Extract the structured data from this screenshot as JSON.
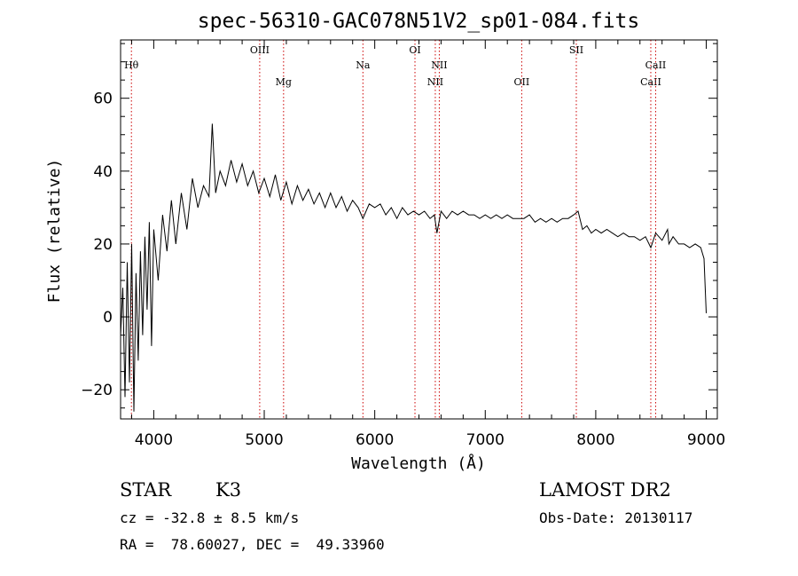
{
  "chart_data": {
    "type": "line",
    "title": "spec-56310-GAC078N51V2_sp01-084.fits",
    "xlabel": "Wavelength (Å)",
    "ylabel": "Flux (relative)",
    "xlim": [
      3700,
      9100
    ],
    "ylim": [
      -28,
      76
    ],
    "x_ticks": [
      4000,
      5000,
      6000,
      7000,
      8000,
      9000
    ],
    "y_ticks": [
      -20,
      0,
      20,
      40,
      60
    ],
    "grid": false,
    "line_color": "#000000",
    "marker_color": "#cc0000",
    "spectral_lines": [
      {
        "label": "Hθ",
        "wavelength": 3798,
        "row": 1
      },
      {
        "label": "OIII",
        "wavelength": 4959,
        "row": 0
      },
      {
        "label": "Mg",
        "wavelength": 5175,
        "row": 2
      },
      {
        "label": "Na",
        "wavelength": 5893,
        "row": 1
      },
      {
        "label": "OI",
        "wavelength": 6364,
        "row": 0
      },
      {
        "label": "NII",
        "wavelength": 6548,
        "row": 2
      },
      {
        "label": "NII",
        "wavelength": 6584,
        "row": 1
      },
      {
        "label": "OII",
        "wavelength": 7330,
        "row": 2
      },
      {
        "label": "SII",
        "wavelength": 7824,
        "row": 0
      },
      {
        "label": "CaII",
        "wavelength": 8498,
        "row": 2
      },
      {
        "label": "CaII",
        "wavelength": 8542,
        "row": 1
      }
    ],
    "series": [
      {
        "x": [
          3700,
          3720,
          3740,
          3760,
          3780,
          3800,
          3820,
          3840,
          3860,
          3880,
          3900,
          3920,
          3940,
          3960,
          3980,
          4000,
          4040,
          4080,
          4120,
          4160,
          4200,
          4250,
          4300,
          4350,
          4400,
          4450,
          4500,
          4530,
          4560,
          4600,
          4650,
          4700,
          4750,
          4800,
          4850,
          4900,
          4950,
          5000,
          5050,
          5100,
          5150,
          5200,
          5250,
          5300,
          5350,
          5400,
          5450,
          5500,
          5550,
          5600,
          5650,
          5700,
          5750,
          5800,
          5850,
          5893,
          5950,
          6000,
          6050,
          6100,
          6150,
          6200,
          6250,
          6300,
          6350,
          6400,
          6450,
          6500,
          6540,
          6563,
          6600,
          6650,
          6700,
          6750,
          6800,
          6850,
          6900,
          6950,
          7000,
          7050,
          7100,
          7150,
          7200,
          7250,
          7300,
          7350,
          7400,
          7450,
          7500,
          7550,
          7600,
          7650,
          7700,
          7750,
          7800,
          7840,
          7880,
          7920,
          7960,
          8000,
          8050,
          8100,
          8150,
          8200,
          8250,
          8300,
          8350,
          8400,
          8450,
          8498,
          8542,
          8600,
          8650,
          8662,
          8700,
          8750,
          8800,
          8850,
          8900,
          8950,
          8980,
          9000
        ],
        "y": [
          -5,
          8,
          -22,
          15,
          -18,
          20,
          -26,
          12,
          -12,
          18,
          -5,
          22,
          2,
          26,
          -8,
          24,
          10,
          28,
          18,
          32,
          20,
          34,
          24,
          38,
          30,
          36,
          33,
          53,
          34,
          40,
          36,
          43,
          37,
          42,
          36,
          40,
          34,
          38,
          33,
          39,
          32,
          37,
          31,
          36,
          32,
          35,
          31,
          34,
          30,
          34,
          30,
          33,
          29,
          32,
          30,
          27,
          31,
          30,
          31,
          28,
          30,
          27,
          30,
          28,
          29,
          28,
          29,
          27,
          28,
          23,
          29,
          27,
          29,
          28,
          29,
          28,
          28,
          27,
          28,
          27,
          28,
          27,
          28,
          27,
          27,
          27,
          28,
          26,
          27,
          26,
          27,
          26,
          27,
          27,
          28,
          29,
          24,
          25,
          23,
          24,
          23,
          24,
          23,
          22,
          23,
          22,
          22,
          21,
          22,
          19,
          23,
          21,
          24,
          20,
          22,
          20,
          20,
          19,
          20,
          19,
          16,
          1
        ]
      }
    ]
  },
  "info": {
    "object_class": "STAR",
    "subclass": "K3",
    "survey": "LAMOST DR2",
    "redshift": "cz = -32.8 ± 8.5 km/s",
    "obs_date": "Obs-Date: 20130117",
    "coords": "RA =  78.60027, DEC =  49.33960"
  }
}
